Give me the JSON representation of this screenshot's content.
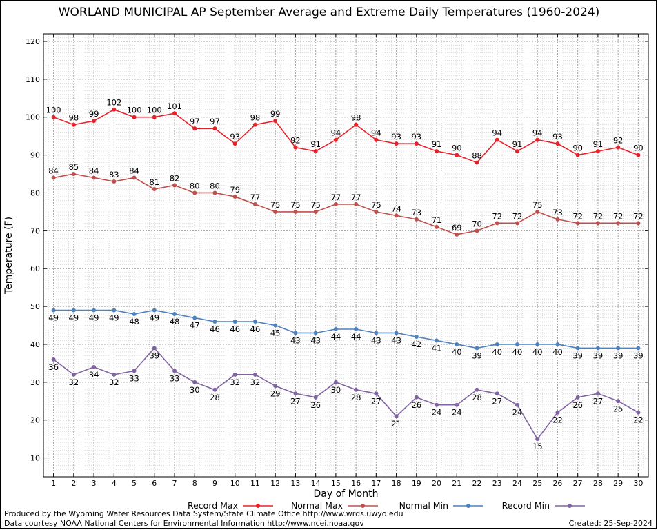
{
  "title": "WORLAND MUNICIPAL AP September Average and Extreme Daily Temperatures (1960-2024)",
  "footer": {
    "produced_by": "Produced by the Wyoming Water Resources Data System/State Climate Office http://www.wrds.uwyo.edu",
    "courtesy": "Data courtesy NOAA National Centers for Environmental Information http://www.ncei.noaa.gov",
    "created": "Created:  25-Sep-2024"
  },
  "chart_data": {
    "type": "line",
    "xlabel": "Day of Month",
    "ylabel": "Temperature (F)",
    "xlim": [
      0.5,
      30.5
    ],
    "ylim": [
      5,
      122
    ],
    "y_ticks": [
      10,
      20,
      30,
      40,
      50,
      60,
      70,
      80,
      90,
      100,
      110,
      120
    ],
    "x": [
      1,
      2,
      3,
      4,
      5,
      6,
      7,
      8,
      9,
      10,
      11,
      12,
      13,
      14,
      15,
      16,
      17,
      18,
      19,
      20,
      21,
      22,
      23,
      24,
      25,
      26,
      27,
      28,
      29,
      30
    ],
    "grid": true,
    "legend_position": "bottom",
    "series": [
      {
        "name": "Record Max",
        "color": "#e8202a",
        "label_position": "above",
        "values": [
          100,
          98,
          99,
          102,
          100,
          100,
          101,
          97,
          97,
          93,
          98,
          99,
          92,
          91,
          94,
          98,
          94,
          93,
          93,
          91,
          90,
          88,
          94,
          91,
          94,
          93,
          90,
          91,
          92,
          90
        ]
      },
      {
        "name": "Normal Max",
        "color": "#c0504d",
        "label_position": "above",
        "values": [
          84,
          85,
          84,
          83,
          84,
          81,
          82,
          80,
          80,
          79,
          77,
          75,
          75,
          75,
          77,
          77,
          75,
          74,
          73,
          71,
          69,
          70,
          72,
          72,
          75,
          73,
          72,
          72,
          72,
          72
        ]
      },
      {
        "name": "Normal Min",
        "color": "#4f81bd",
        "label_position": "below",
        "values": [
          49,
          49,
          49,
          49,
          48,
          49,
          48,
          47,
          46,
          46,
          46,
          45,
          43,
          43,
          44,
          44,
          43,
          43,
          42,
          41,
          40,
          39,
          40,
          40,
          40,
          40,
          39,
          39,
          39,
          39
        ]
      },
      {
        "name": "Record Min",
        "color": "#8064a2",
        "label_position": "below",
        "values": [
          36,
          32,
          34,
          32,
          33,
          39,
          33,
          30,
          28,
          32,
          32,
          29,
          27,
          26,
          30,
          28,
          27,
          21,
          26,
          24,
          24,
          28,
          27,
          24,
          15,
          22,
          26,
          27,
          25,
          22
        ]
      }
    ]
  }
}
